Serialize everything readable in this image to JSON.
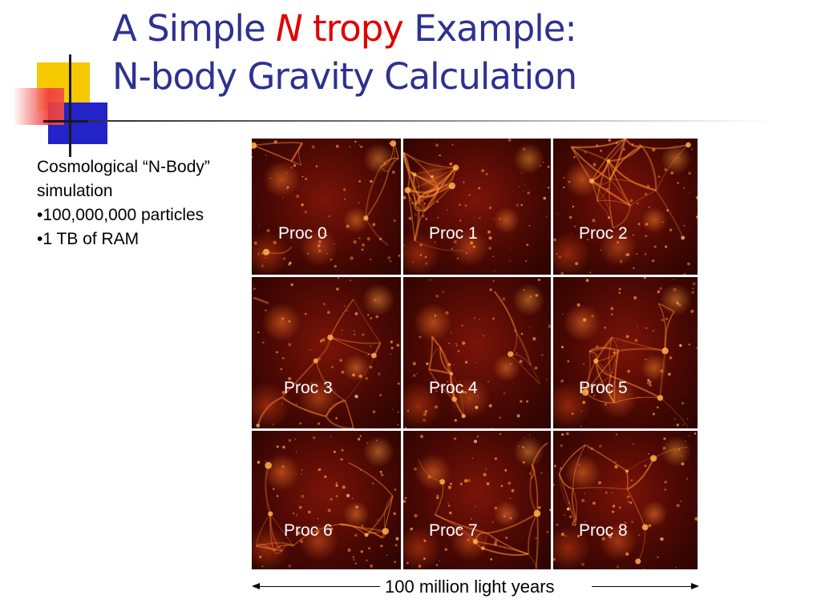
{
  "title": {
    "line1_a": "A Simple ",
    "line1_n": "N",
    "line1_tropy": "tropy",
    "line1_b": " Example:",
    "line2": "N-body Gravity Calculation"
  },
  "body": {
    "line1": "Cosmological “N-Body”",
    "line2": "simulation",
    "bullet1": "•100,000,000 particles",
    "bullet2": "•1 TB of RAM"
  },
  "grid": {
    "labels": [
      "Proc 0",
      "Proc 1",
      "Proc 2",
      "Proc 3",
      "Proc 4",
      "Proc 5",
      "Proc 6",
      "Proc 7",
      "Proc 8"
    ]
  },
  "caption": "100 million light years",
  "colors": {
    "title_blue": "#2e3192",
    "accent_red": "#e00000",
    "filament_orange": "#ff8c32"
  }
}
